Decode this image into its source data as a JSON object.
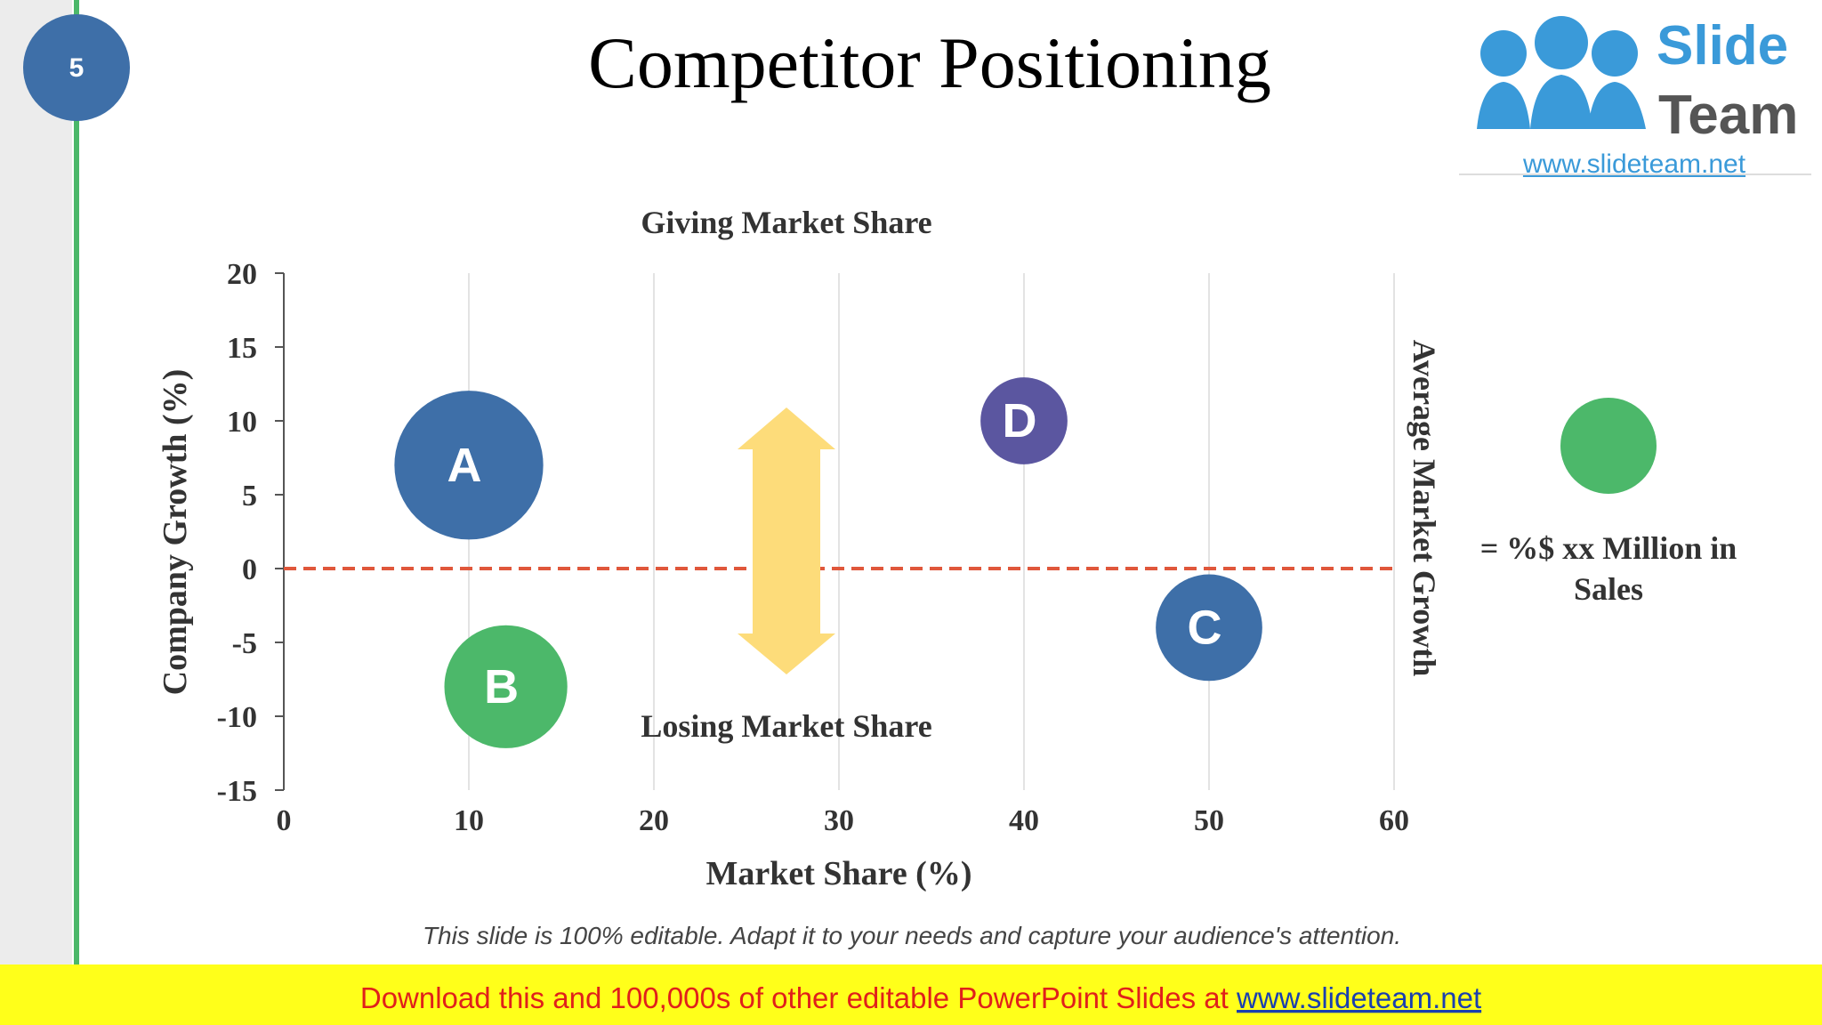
{
  "slide_number": "5",
  "logo": {
    "line1": "Slide",
    "line2": "Team",
    "url": "www.slideteam.net"
  },
  "chart_data": {
    "type": "bubble",
    "title": "Competitor Positioning",
    "x_label": "Market Share (%)",
    "y_label": "Company Growth (%)",
    "annotations": {
      "top": "Giving Market Share",
      "bottom": "Losing Market Share",
      "right": "Average Market Growth"
    },
    "xlim": [
      0,
      60
    ],
    "xticks": [
      0,
      10,
      20,
      30,
      40,
      50,
      60
    ],
    "ylim": [
      -15,
      20
    ],
    "yticks": [
      20,
      15,
      10,
      5,
      0,
      -5,
      -10,
      -15
    ],
    "reference_line": 0,
    "reference_color": "#e0573b",
    "grid": true,
    "series": [
      {
        "name": "A",
        "color": "#3e6fa8",
        "x": [
          10
        ],
        "values": [
          7
        ],
        "sizes": [
          41
        ]
      },
      {
        "name": "B",
        "color": "#4cb86a",
        "x": [
          12
        ],
        "values": [
          -8
        ],
        "sizes": [
          28
        ]
      },
      {
        "name": "C",
        "color": "#3e6fa8",
        "x": [
          50
        ],
        "values": [
          -4
        ],
        "sizes": [
          21
        ]
      },
      {
        "name": "D",
        "color": "#5b56a0",
        "x": [
          40
        ],
        "values": [
          10
        ],
        "sizes": [
          14
        ]
      }
    ],
    "size_legend": {
      "color": "#4cb86a",
      "line1": "= %$ xx Million in",
      "line2": "Sales"
    }
  },
  "footnote": "This slide is 100% editable. Adapt it to your needs and capture your audience's attention.",
  "banner": {
    "text": "Download this and 100,000s of other editable PowerPoint Slides at ",
    "link": "www.slideteam.net"
  }
}
